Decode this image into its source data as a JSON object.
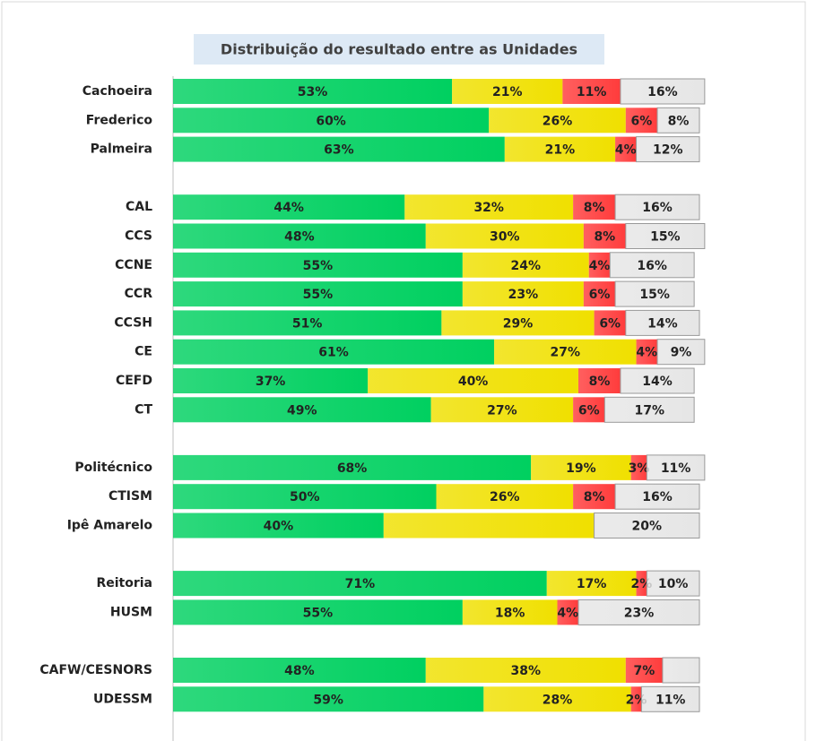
{
  "chart_data": {
    "type": "stacked_bar_horizontal",
    "title": "Distribuição do resultado entre as Unidades",
    "categories": [
      "Cachoeira",
      "Frederico",
      "Palmeira",
      null,
      "CAL",
      "CCS",
      "CCNE",
      "CCR",
      "CCSH",
      "CE",
      "CEFD",
      "CT",
      null,
      "Politécnico",
      "CTISM",
      "Ipê Amarelo",
      null,
      "Reitoria",
      "HUSM",
      null,
      "CAFW/CESNORS",
      "UDESSM"
    ],
    "xlim": [
      0,
      100
    ],
    "series": [
      {
        "color": "#00d060",
        "values": [
          53,
          60,
          63,
          null,
          44,
          48,
          55,
          55,
          51,
          61,
          37,
          49,
          null,
          68,
          50,
          40,
          null,
          71,
          55,
          null,
          48,
          59
        ],
        "value_labels": [
          "53%",
          "60%",
          "63%",
          null,
          "44%",
          "48%",
          "55%",
          "55%",
          "51%",
          "61%",
          "37%",
          "49%",
          null,
          "68%",
          "50%",
          "40%",
          null,
          "71%",
          "55%",
          null,
          "48%",
          "59%"
        ]
      },
      {
        "color": "#f0e000",
        "values": [
          21,
          26,
          21,
          null,
          32,
          30,
          24,
          23,
          29,
          27,
          40,
          27,
          null,
          19,
          26,
          40,
          null,
          17,
          18,
          null,
          38,
          28
        ],
        "value_labels": [
          "21%",
          "26%",
          "21%",
          null,
          "32%",
          "30%",
          "24%",
          "23%",
          "29%",
          "27%",
          "40%",
          "27%",
          null,
          "19%",
          "26%",
          null,
          null,
          "17%",
          "18%",
          null,
          "38%",
          "28%"
        ]
      },
      {
        "color": "#ff3c3c",
        "values": [
          11,
          6,
          4,
          null,
          8,
          8,
          4,
          6,
          6,
          4,
          8,
          6,
          null,
          3,
          8,
          0,
          null,
          2,
          4,
          null,
          7,
          2
        ],
        "value_labels": [
          "11%",
          "6%",
          "4%",
          null,
          "8%",
          "8%",
          "4%",
          "6%",
          "6%",
          "4%",
          "8%",
          "6%",
          null,
          "3%",
          "8%",
          null,
          null,
          "2%",
          "4%",
          null,
          "7%",
          "2%"
        ]
      },
      {
        "color": "#e6e6e6",
        "values": [
          16,
          8,
          12,
          null,
          16,
          15,
          16,
          15,
          14,
          9,
          14,
          17,
          null,
          11,
          16,
          20,
          null,
          10,
          23,
          null,
          7,
          11
        ],
        "value_labels": [
          "16%",
          "8%",
          "12%",
          null,
          "16%",
          "15%",
          "16%",
          "15%",
          "14%",
          "9%",
          "14%",
          "17%",
          null,
          "11%",
          "16%",
          "20%",
          null,
          "10%",
          "23%",
          null,
          null,
          "11%"
        ]
      }
    ]
  }
}
